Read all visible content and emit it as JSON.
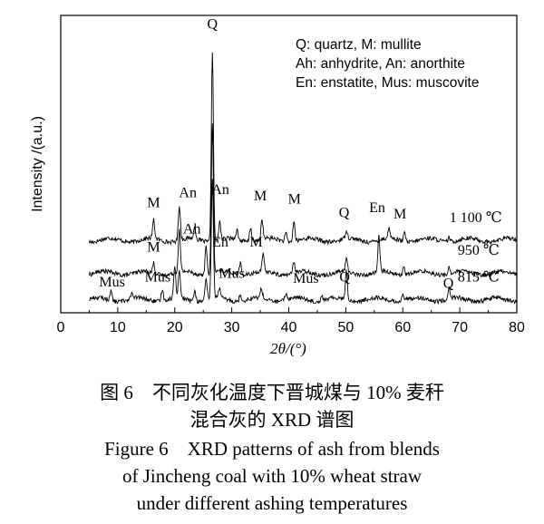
{
  "chart_data": {
    "type": "line",
    "xlabel": "2θ/(°)",
    "ylabel": "Intensity /(a.u.)",
    "xlim": [
      0,
      80
    ],
    "x_ticks": [
      0,
      10,
      20,
      30,
      40,
      50,
      60,
      70,
      80
    ],
    "x_tick_labels": [
      "0",
      "10",
      "20",
      "30",
      "40",
      "50",
      "60",
      "70",
      "80"
    ],
    "y_ticks_shown": false,
    "legend_box": [
      "Q: quartz, M: mullite",
      "Ah: anhydrite, An: anorthite",
      "En: enstatite, Mus: muscovite"
    ],
    "series": [
      {
        "name": "1 100 ℃",
        "baseline": 2.2,
        "peaks": [
          [
            16.3,
            0.55
          ],
          [
            20.8,
            1.05
          ],
          [
            23.5,
            0.35
          ],
          [
            26.6,
            5.8
          ],
          [
            27.9,
            0.55
          ],
          [
            30.9,
            0.3
          ],
          [
            33.3,
            0.45
          ],
          [
            35.3,
            0.6
          ],
          [
            39.5,
            0.25
          ],
          [
            40.9,
            0.6
          ],
          [
            50.1,
            0.25
          ],
          [
            57.6,
            0.3
          ],
          [
            60.3,
            0.25
          ],
          [
            68.1,
            0.15
          ]
        ]
      },
      {
        "name": "950 ℃",
        "baseline": 1.2,
        "peaks": [
          [
            16.3,
            0.3
          ],
          [
            20.8,
            1.25
          ],
          [
            25.5,
            0.85
          ],
          [
            26.6,
            4.5
          ],
          [
            31.5,
            0.35
          ],
          [
            35.5,
            0.5
          ],
          [
            40.9,
            0.35
          ],
          [
            50.1,
            0.4
          ],
          [
            55.8,
            1.05
          ],
          [
            60.2,
            0.25
          ],
          [
            68.1,
            0.2
          ]
        ]
      },
      {
        "name": "815 ℃",
        "baseline": 0.4,
        "peaks": [
          [
            8.8,
            0.3
          ],
          [
            12.4,
            0.15
          ],
          [
            17.8,
            0.35
          ],
          [
            20.0,
            0.95
          ],
          [
            20.8,
            0.85
          ],
          [
            23.5,
            0.3
          ],
          [
            25.5,
            0.6
          ],
          [
            26.6,
            3.6
          ],
          [
            27.8,
            0.3
          ],
          [
            31.5,
            0.2
          ],
          [
            35.2,
            0.3
          ],
          [
            39.5,
            0.2
          ],
          [
            45.8,
            0.15
          ],
          [
            50.1,
            0.85
          ],
          [
            60.0,
            0.2
          ],
          [
            68.1,
            0.3
          ]
        ]
      }
    ],
    "peak_labels": [
      {
        "text": "Q",
        "x": 26.6,
        "y": 8.6
      },
      {
        "text": "M",
        "x": 16.3,
        "y": 3.2
      },
      {
        "text": "An",
        "x": 22.3,
        "y": 3.5
      },
      {
        "text": "An",
        "x": 28.0,
        "y": 3.6
      },
      {
        "text": "M",
        "x": 35.0,
        "y": 3.4
      },
      {
        "text": "M",
        "x": 41.0,
        "y": 3.3
      },
      {
        "text": "Q",
        "x": 49.7,
        "y": 2.9
      },
      {
        "text": "En",
        "x": 55.5,
        "y": 3.05
      },
      {
        "text": "M",
        "x": 59.5,
        "y": 2.85
      },
      {
        "text": "M",
        "x": 16.3,
        "y": 1.85
      },
      {
        "text": "Ah",
        "x": 23.0,
        "y": 2.4
      },
      {
        "text": "En",
        "x": 28.0,
        "y": 2.0
      },
      {
        "text": "M",
        "x": 34.3,
        "y": 2.0
      },
      {
        "text": "Mus",
        "x": 9.0,
        "y": 0.8
      },
      {
        "text": "Mus",
        "x": 17.0,
        "y": 0.95
      },
      {
        "text": "Mus",
        "x": 30.0,
        "y": 1.05
      },
      {
        "text": "Mus",
        "x": 43.0,
        "y": 0.9
      },
      {
        "text": "Q",
        "x": 49.8,
        "y": 0.95
      },
      {
        "text": "Q",
        "x": 68.0,
        "y": 0.75
      }
    ]
  },
  "caption": {
    "cn_line1": "图 6　不同灰化温度下晋城煤与 10% 麦秆",
    "cn_line2": "混合灰的 XRD 谱图",
    "en_line1": "Figure 6　XRD patterns of ash from blends",
    "en_line2": "of Jincheng coal with 10%  wheat straw",
    "en_line3": "under different ashing temperatures"
  }
}
